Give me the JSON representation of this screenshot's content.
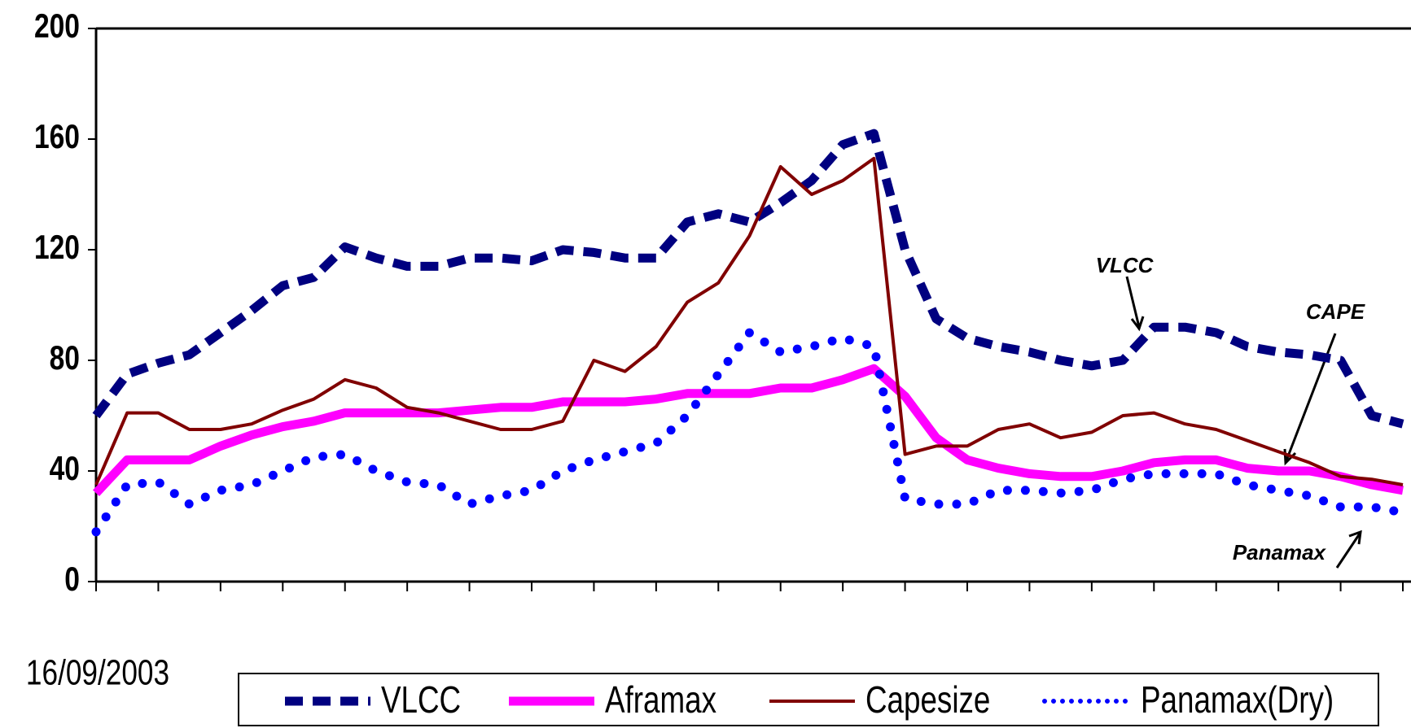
{
  "chart_data": {
    "type": "line",
    "categories": [
      "16/09/2003",
      null,
      null,
      null,
      null,
      null,
      null,
      null,
      null,
      null,
      null,
      null,
      null,
      null,
      null,
      null,
      null,
      null,
      null,
      null,
      null,
      null,
      null,
      null,
      null,
      null,
      null,
      null,
      null,
      null,
      null,
      null,
      null,
      null,
      null,
      null,
      null,
      null,
      null,
      null,
      null,
      null,
      null
    ],
    "series": [
      {
        "name": "VLCC",
        "color": "#000080",
        "style": "dashed",
        "values": [
          60,
          75,
          79,
          82,
          90,
          98,
          107,
          110,
          121,
          117,
          114,
          114,
          117,
          117,
          116,
          120,
          119,
          117,
          117,
          130,
          133,
          130,
          137,
          145,
          158,
          162,
          120,
          95,
          88,
          85,
          83,
          80,
          78,
          80,
          92,
          92,
          90,
          85,
          83,
          82,
          80,
          60,
          57
        ]
      },
      {
        "name": "Aframax",
        "color": "#ff00ff",
        "style": "solid-thick",
        "values": [
          32,
          44,
          44,
          44,
          49,
          53,
          56,
          58,
          61,
          61,
          61,
          61,
          62,
          63,
          63,
          65,
          65,
          65,
          66,
          68,
          68,
          68,
          70,
          70,
          73,
          77,
          67,
          52,
          44,
          41,
          39,
          38,
          38,
          40,
          43,
          44,
          44,
          41,
          40,
          40,
          38,
          35,
          33
        ]
      },
      {
        "name": "Capesize",
        "color": "#800000",
        "style": "solid",
        "values": [
          35,
          61,
          61,
          55,
          55,
          57,
          62,
          66,
          73,
          70,
          63,
          61,
          58,
          55,
          55,
          58,
          80,
          76,
          85,
          101,
          108,
          125,
          150,
          140,
          145,
          153,
          46,
          49,
          49,
          55,
          57,
          52,
          54,
          60,
          61,
          57,
          55,
          51,
          47,
          43,
          38,
          37,
          35
        ]
      },
      {
        "name": "Panamax(Dry)",
        "color": "#0000ff",
        "style": "dotted",
        "values": [
          18,
          35,
          36,
          28,
          33,
          35,
          40,
          45,
          46,
          40,
          36,
          35,
          28,
          31,
          33,
          40,
          44,
          47,
          50,
          60,
          75,
          90,
          83,
          85,
          88,
          85,
          30,
          28,
          28,
          33,
          33,
          32,
          33,
          37,
          39,
          39,
          39,
          35,
          33,
          31,
          27,
          27,
          25
        ]
      }
    ],
    "ylim": [
      0,
      200
    ],
    "yticks": [
      0,
      40,
      80,
      120,
      160,
      200
    ],
    "grid": false,
    "annotations": [
      "VLCC",
      "CAPE",
      "Panamax"
    ]
  }
}
